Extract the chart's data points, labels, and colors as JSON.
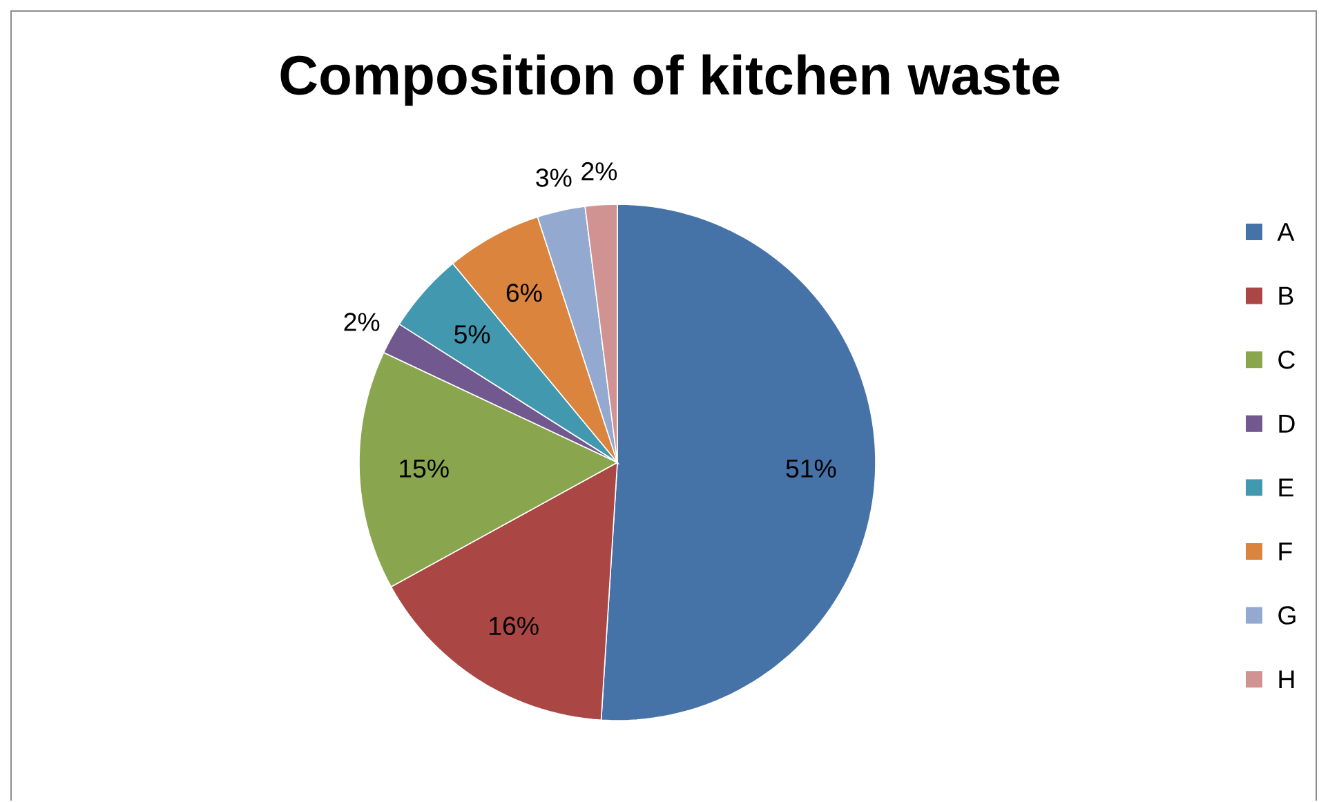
{
  "chart_data": {
    "type": "pie",
    "title": "Composition of kitchen waste",
    "categories": [
      "A",
      "B",
      "C",
      "D",
      "E",
      "F",
      "G",
      "H"
    ],
    "values": [
      51,
      16,
      15,
      2,
      5,
      6,
      3,
      2
    ],
    "value_labels": [
      "51%",
      "16%",
      "15%",
      "2%",
      "5%",
      "6%",
      "3%",
      "2%"
    ],
    "colors": [
      "#4572a7",
      "#aa4643",
      "#89a54e",
      "#71588f",
      "#4198af",
      "#db843d",
      "#93a9cf",
      "#d19392"
    ],
    "legend": "right"
  }
}
